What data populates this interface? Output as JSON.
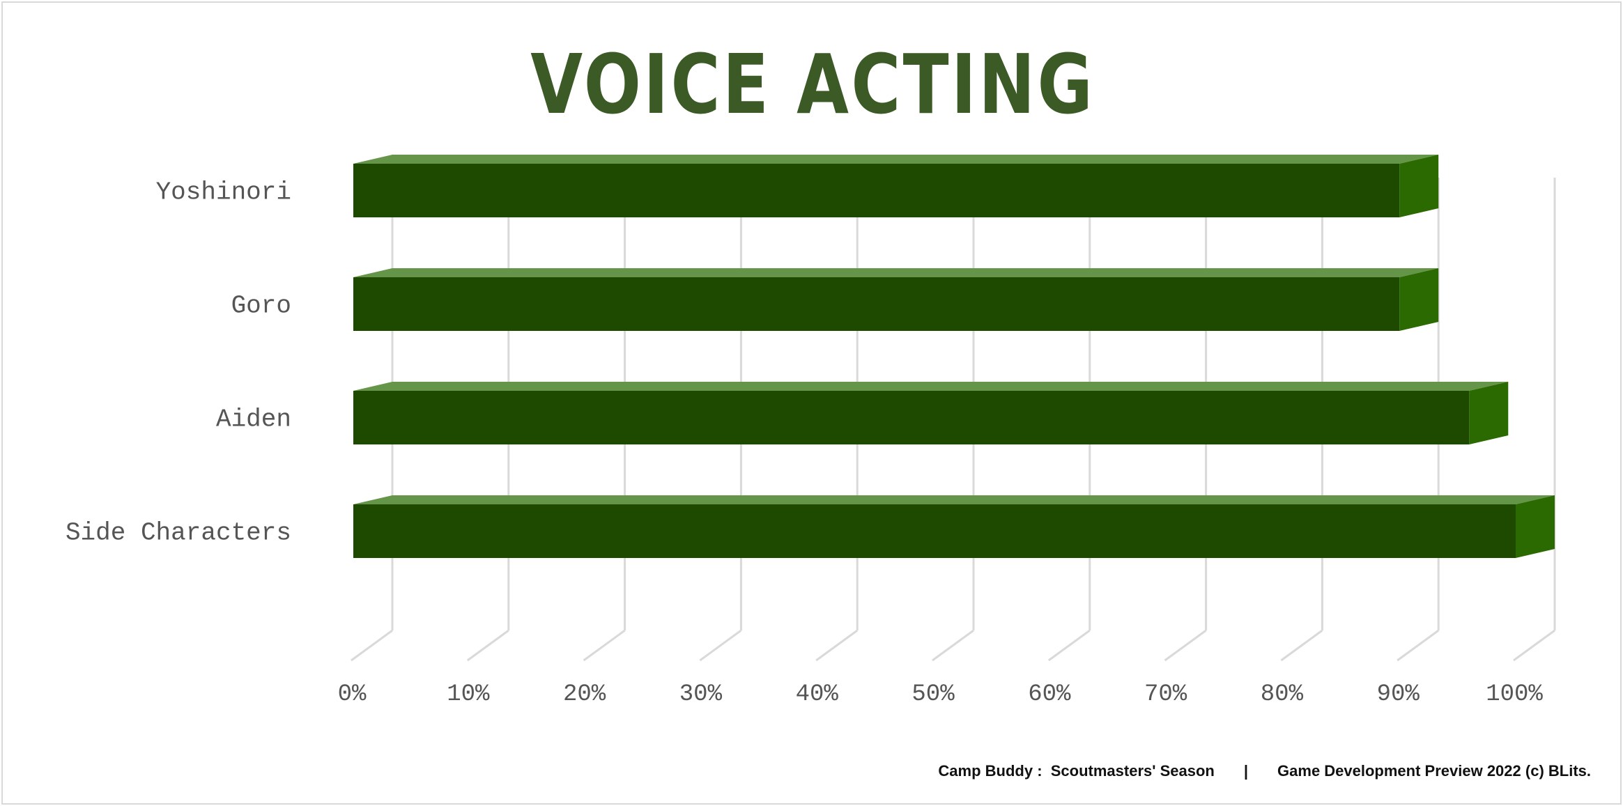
{
  "title": "VOICE ACTING",
  "footer": {
    "left": "Camp Buddy :  Scoutmasters' Season",
    "separator": "|",
    "right": "Game Development Preview 2022 (c) BLits."
  },
  "colors": {
    "title": "#3b5a26",
    "bar_front": "#1e4a00",
    "bar_top": "#659548",
    "bar_side": "#2a6a00",
    "grid": "#d9d9d9",
    "label": "#555555"
  },
  "chart_data": {
    "type": "bar",
    "orientation": "horizontal",
    "style": "3d",
    "title": "VOICE ACTING",
    "categories": [
      "Yoshinori",
      "Goro",
      "Aiden",
      "Side Characters"
    ],
    "values": [
      0.9,
      0.9,
      0.96,
      1.0
    ],
    "xlim": [
      0,
      1
    ],
    "x_ticks": [
      "0%",
      "10%",
      "20%",
      "30%",
      "40%",
      "50%",
      "60%",
      "70%",
      "80%",
      "90%",
      "100%"
    ],
    "grid": true,
    "legend": "none"
  }
}
